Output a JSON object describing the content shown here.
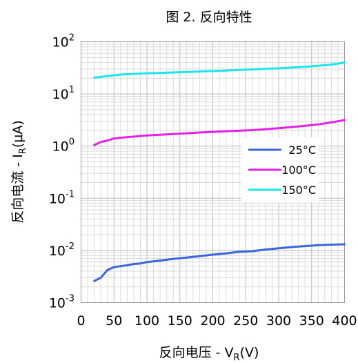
{
  "chart_data": {
    "type": "line",
    "title": "图 2. 反向特性",
    "xlabel": "反向电压 - V_R(V)",
    "ylabel": "反向电流 - I_R(μA)",
    "xlim": [
      0,
      400
    ],
    "ylim": [
      0.001,
      100
    ],
    "yscale": "log",
    "grid": true,
    "legend": "center-right",
    "x_ticks": [
      "0",
      "50",
      "100",
      "150",
      "200",
      "250",
      "300",
      "350",
      "400"
    ],
    "y_ticks": [
      {
        "base": "10",
        "exp": "2"
      },
      {
        "base": "10",
        "exp": "1"
      },
      {
        "base": "10",
        "exp": "0"
      },
      {
        "base": "10",
        "exp": "-1"
      },
      {
        "base": "10",
        "exp": "-2"
      },
      {
        "base": "10",
        "exp": "-3"
      }
    ],
    "series": [
      {
        "name": "25°C",
        "color": "#3b64e0",
        "x": [
          20,
          30,
          40,
          50,
          60,
          70,
          80,
          90,
          100,
          120,
          140,
          160,
          180,
          200,
          220,
          240,
          260,
          280,
          300,
          320,
          340,
          360,
          380,
          400
        ],
        "y": [
          0.0026,
          0.003,
          0.0042,
          0.0048,
          0.005,
          0.0052,
          0.0055,
          0.0056,
          0.006,
          0.0064,
          0.0069,
          0.0073,
          0.0078,
          0.0083,
          0.0088,
          0.0094,
          0.0097,
          0.0104,
          0.011,
          0.0116,
          0.0121,
          0.0126,
          0.0129,
          0.0131
        ]
      },
      {
        "name": "100°C",
        "color": "#e620e6",
        "x": [
          20,
          30,
          40,
          50,
          60,
          80,
          100,
          120,
          140,
          160,
          180,
          200,
          220,
          240,
          260,
          280,
          300,
          320,
          340,
          360,
          380,
          400
        ],
        "y": [
          1.05,
          1.2,
          1.28,
          1.4,
          1.45,
          1.52,
          1.6,
          1.65,
          1.7,
          1.76,
          1.82,
          1.87,
          1.92,
          1.97,
          2.03,
          2.1,
          2.2,
          2.32,
          2.45,
          2.6,
          2.85,
          3.15
        ]
      },
      {
        "name": "150°C",
        "color": "#1ae6ee",
        "x": [
          20,
          40,
          60,
          80,
          100,
          120,
          140,
          160,
          180,
          200,
          220,
          240,
          260,
          280,
          300,
          320,
          340,
          360,
          380,
          400
        ],
        "y": [
          20.5,
          22,
          23.5,
          24.2,
          24.8,
          25.3,
          25.8,
          26.3,
          26.9,
          27.5,
          28.1,
          28.8,
          29.5,
          30.2,
          31,
          32,
          33.2,
          34.6,
          36.5,
          40
        ]
      }
    ]
  }
}
